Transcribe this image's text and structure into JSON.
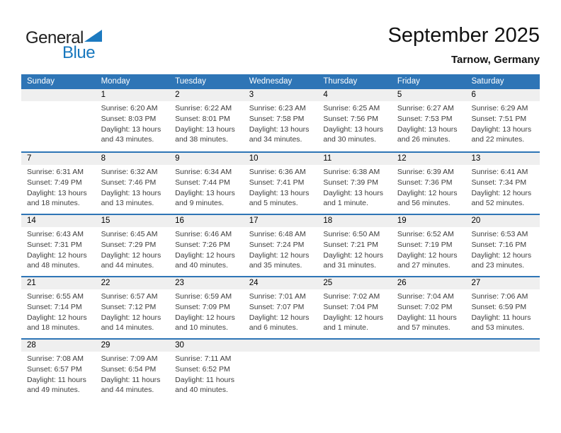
{
  "logo": {
    "line1": "General",
    "line2": "Blue"
  },
  "header": {
    "title": "September 2025",
    "location": "Tarnow, Germany"
  },
  "colors": {
    "header_bg": "#2E75B6",
    "week_separator": "#2E75B6",
    "date_band_bg": "#EFEFEF",
    "logo_blue": "#1878BE"
  },
  "calendar": {
    "weekdays": [
      "Sunday",
      "Monday",
      "Tuesday",
      "Wednesday",
      "Thursday",
      "Friday",
      "Saturday"
    ],
    "weeks": [
      [
        null,
        {
          "day": "1",
          "lines": [
            "Sunrise: 6:20 AM",
            "Sunset: 8:03 PM",
            "Daylight: 13 hours",
            "and 43 minutes."
          ]
        },
        {
          "day": "2",
          "lines": [
            "Sunrise: 6:22 AM",
            "Sunset: 8:01 PM",
            "Daylight: 13 hours",
            "and 38 minutes."
          ]
        },
        {
          "day": "3",
          "lines": [
            "Sunrise: 6:23 AM",
            "Sunset: 7:58 PM",
            "Daylight: 13 hours",
            "and 34 minutes."
          ]
        },
        {
          "day": "4",
          "lines": [
            "Sunrise: 6:25 AM",
            "Sunset: 7:56 PM",
            "Daylight: 13 hours",
            "and 30 minutes."
          ]
        },
        {
          "day": "5",
          "lines": [
            "Sunrise: 6:27 AM",
            "Sunset: 7:53 PM",
            "Daylight: 13 hours",
            "and 26 minutes."
          ]
        },
        {
          "day": "6",
          "lines": [
            "Sunrise: 6:29 AM",
            "Sunset: 7:51 PM",
            "Daylight: 13 hours",
            "and 22 minutes."
          ]
        }
      ],
      [
        {
          "day": "7",
          "lines": [
            "Sunrise: 6:31 AM",
            "Sunset: 7:49 PM",
            "Daylight: 13 hours",
            "and 18 minutes."
          ]
        },
        {
          "day": "8",
          "lines": [
            "Sunrise: 6:32 AM",
            "Sunset: 7:46 PM",
            "Daylight: 13 hours",
            "and 13 minutes."
          ]
        },
        {
          "day": "9",
          "lines": [
            "Sunrise: 6:34 AM",
            "Sunset: 7:44 PM",
            "Daylight: 13 hours",
            "and 9 minutes."
          ]
        },
        {
          "day": "10",
          "lines": [
            "Sunrise: 6:36 AM",
            "Sunset: 7:41 PM",
            "Daylight: 13 hours",
            "and 5 minutes."
          ]
        },
        {
          "day": "11",
          "lines": [
            "Sunrise: 6:38 AM",
            "Sunset: 7:39 PM",
            "Daylight: 13 hours",
            "and 1 minute."
          ]
        },
        {
          "day": "12",
          "lines": [
            "Sunrise: 6:39 AM",
            "Sunset: 7:36 PM",
            "Daylight: 12 hours",
            "and 56 minutes."
          ]
        },
        {
          "day": "13",
          "lines": [
            "Sunrise: 6:41 AM",
            "Sunset: 7:34 PM",
            "Daylight: 12 hours",
            "and 52 minutes."
          ]
        }
      ],
      [
        {
          "day": "14",
          "lines": [
            "Sunrise: 6:43 AM",
            "Sunset: 7:31 PM",
            "Daylight: 12 hours",
            "and 48 minutes."
          ]
        },
        {
          "day": "15",
          "lines": [
            "Sunrise: 6:45 AM",
            "Sunset: 7:29 PM",
            "Daylight: 12 hours",
            "and 44 minutes."
          ]
        },
        {
          "day": "16",
          "lines": [
            "Sunrise: 6:46 AM",
            "Sunset: 7:26 PM",
            "Daylight: 12 hours",
            "and 40 minutes."
          ]
        },
        {
          "day": "17",
          "lines": [
            "Sunrise: 6:48 AM",
            "Sunset: 7:24 PM",
            "Daylight: 12 hours",
            "and 35 minutes."
          ]
        },
        {
          "day": "18",
          "lines": [
            "Sunrise: 6:50 AM",
            "Sunset: 7:21 PM",
            "Daylight: 12 hours",
            "and 31 minutes."
          ]
        },
        {
          "day": "19",
          "lines": [
            "Sunrise: 6:52 AM",
            "Sunset: 7:19 PM",
            "Daylight: 12 hours",
            "and 27 minutes."
          ]
        },
        {
          "day": "20",
          "lines": [
            "Sunrise: 6:53 AM",
            "Sunset: 7:16 PM",
            "Daylight: 12 hours",
            "and 23 minutes."
          ]
        }
      ],
      [
        {
          "day": "21",
          "lines": [
            "Sunrise: 6:55 AM",
            "Sunset: 7:14 PM",
            "Daylight: 12 hours",
            "and 18 minutes."
          ]
        },
        {
          "day": "22",
          "lines": [
            "Sunrise: 6:57 AM",
            "Sunset: 7:12 PM",
            "Daylight: 12 hours",
            "and 14 minutes."
          ]
        },
        {
          "day": "23",
          "lines": [
            "Sunrise: 6:59 AM",
            "Sunset: 7:09 PM",
            "Daylight: 12 hours",
            "and 10 minutes."
          ]
        },
        {
          "day": "24",
          "lines": [
            "Sunrise: 7:01 AM",
            "Sunset: 7:07 PM",
            "Daylight: 12 hours",
            "and 6 minutes."
          ]
        },
        {
          "day": "25",
          "lines": [
            "Sunrise: 7:02 AM",
            "Sunset: 7:04 PM",
            "Daylight: 12 hours",
            "and 1 minute."
          ]
        },
        {
          "day": "26",
          "lines": [
            "Sunrise: 7:04 AM",
            "Sunset: 7:02 PM",
            "Daylight: 11 hours",
            "and 57 minutes."
          ]
        },
        {
          "day": "27",
          "lines": [
            "Sunrise: 7:06 AM",
            "Sunset: 6:59 PM",
            "Daylight: 11 hours",
            "and 53 minutes."
          ]
        }
      ],
      [
        {
          "day": "28",
          "lines": [
            "Sunrise: 7:08 AM",
            "Sunset: 6:57 PM",
            "Daylight: 11 hours",
            "and 49 minutes."
          ]
        },
        {
          "day": "29",
          "lines": [
            "Sunrise: 7:09 AM",
            "Sunset: 6:54 PM",
            "Daylight: 11 hours",
            "and 44 minutes."
          ]
        },
        {
          "day": "30",
          "lines": [
            "Sunrise: 7:11 AM",
            "Sunset: 6:52 PM",
            "Daylight: 11 hours",
            "and 40 minutes."
          ]
        },
        null,
        null,
        null,
        null
      ]
    ]
  }
}
